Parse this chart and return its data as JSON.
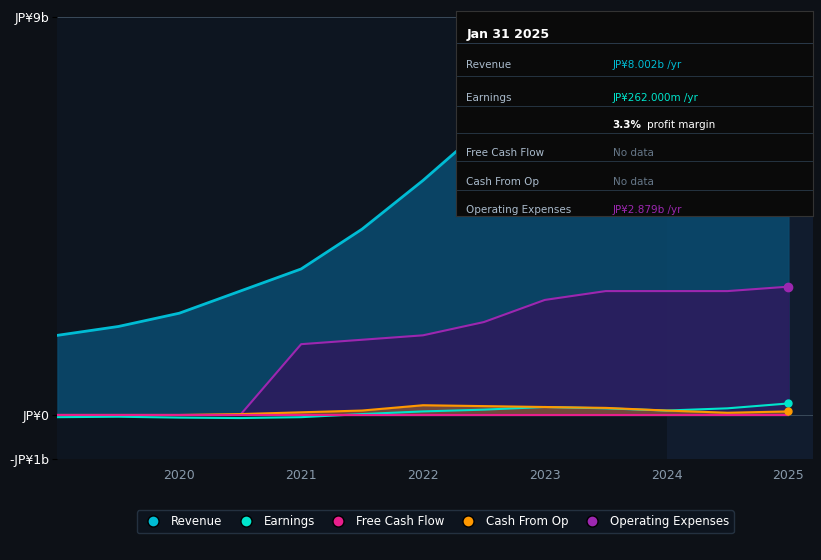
{
  "background_color": "#0d1117",
  "plot_bg_color": "#0d1520",
  "highlight_bg_color": "#111c2e",
  "title": "Jan 31 2025",
  "years": [
    2019.0,
    2019.5,
    2020.0,
    2020.5,
    2021.0,
    2021.5,
    2022.0,
    2022.5,
    2023.0,
    2023.5,
    2024.0,
    2024.5,
    2025.0
  ],
  "revenue": [
    1.8,
    2.0,
    2.3,
    2.8,
    3.3,
    4.2,
    5.3,
    6.5,
    7.8,
    8.6,
    8.4,
    7.9,
    8.0
  ],
  "earnings": [
    -0.05,
    -0.04,
    -0.06,
    -0.07,
    -0.05,
    0.02,
    0.08,
    0.12,
    0.18,
    0.15,
    0.1,
    0.15,
    0.26
  ],
  "free_cash": [
    0.0,
    0.0,
    0.0,
    0.0,
    0.0,
    0.0,
    0.0,
    0.0,
    0.0,
    0.0,
    0.0,
    0.0,
    0.0
  ],
  "cash_from_op": [
    0.0,
    0.0,
    0.0,
    0.02,
    0.06,
    0.1,
    0.22,
    0.2,
    0.18,
    0.16,
    0.1,
    0.05,
    0.08
  ],
  "op_expenses": [
    0.0,
    0.0,
    0.0,
    0.0,
    1.6,
    1.7,
    1.8,
    2.1,
    2.6,
    2.8,
    2.8,
    2.8,
    2.9
  ],
  "revenue_color": "#00bcd4",
  "earnings_color": "#00e5cc",
  "free_cash_color": "#e91e8c",
  "cash_from_op_color": "#ff9800",
  "op_expenses_color": "#9c27b0",
  "revenue_fill": "#0a4a6e",
  "op_expenses_fill": "#2d1b5e",
  "ylim": [
    -1.0,
    9.0
  ],
  "yticks": [
    -1.0,
    0.0,
    9.0
  ],
  "ytick_labels": [
    "-JP¥1b",
    "JP¥0",
    "JP¥9b"
  ],
  "xlim": [
    2019.0,
    2025.2
  ],
  "highlight_start": 2024.0,
  "highlight_end": 2025.2,
  "legend_items": [
    "Revenue",
    "Earnings",
    "Free Cash Flow",
    "Cash From Op",
    "Operating Expenses"
  ],
  "legend_colors": [
    "#00bcd4",
    "#00e5cc",
    "#e91e8c",
    "#ff9800",
    "#9c27b0"
  ]
}
